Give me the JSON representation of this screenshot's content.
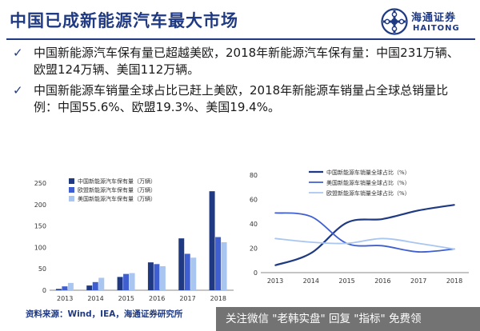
{
  "slide": {
    "title": "中国已成新能源汽车最大市场",
    "logo_cn": "海通证券",
    "logo_en": "HAITONG",
    "bullets": [
      "中国新能源汽车保有量已超越美欧，2018年新能源汽车保有量：中国231万辆、欧盟124万辆、美国112万辆。",
      "中国新能源车销量全球占比已赶上美欧，2018年新能源车销量占全球总销量比例：中国55.6%、欧盟19.3%、美国19.4%。"
    ],
    "source": "资料来源：Wind，IEA，海通证券研究所",
    "watermark": "关注微信 \"老韩实盘\" 回复 \"指标\" 免费领"
  },
  "colors": {
    "brand": "#1f3a82",
    "china": "#1f3a82",
    "eu": "#3f5fd0",
    "us": "#a9c6f0"
  },
  "chart_data": [
    {
      "type": "bar",
      "categories": [
        "2013",
        "2014",
        "2015",
        "2016",
        "2017",
        "2018"
      ],
      "series": [
        {
          "name": "中国新能源汽车保有量（万辆）",
          "values": [
            3,
            11,
            31,
            65,
            121,
            231
          ]
        },
        {
          "name": "欧盟新能源汽车保有量（万辆）",
          "values": [
            9,
            19,
            38,
            61,
            85,
            124
          ]
        },
        {
          "name": "美国新能源汽车保有量（万辆）",
          "values": [
            17,
            29,
            40,
            56,
            76,
            112
          ]
        }
      ],
      "ylim": [
        0,
        250
      ],
      "yticks": [
        0,
        50,
        100,
        150,
        200,
        250
      ],
      "legend": "top-left",
      "grid": false
    },
    {
      "type": "line",
      "x": [
        "2013",
        "2014",
        "2015",
        "2016",
        "2017",
        "2018"
      ],
      "series": [
        {
          "name": "中国新能源车销量全球占比（%）",
          "values": [
            6,
            16,
            41,
            44,
            51,
            55.6
          ]
        },
        {
          "name": "美国新能源车销量全球占比（%）",
          "values": [
            49,
            46,
            24,
            22,
            17,
            19.4
          ]
        },
        {
          "name": "欧盟新能源车销量全球占比（%）",
          "values": [
            28,
            25,
            24,
            28,
            24,
            19.3
          ]
        }
      ],
      "ylim": [
        0,
        80
      ],
      "yticks": [
        0,
        20,
        40,
        60,
        80
      ],
      "legend": "top-right",
      "grid": false,
      "smooth": true
    }
  ]
}
